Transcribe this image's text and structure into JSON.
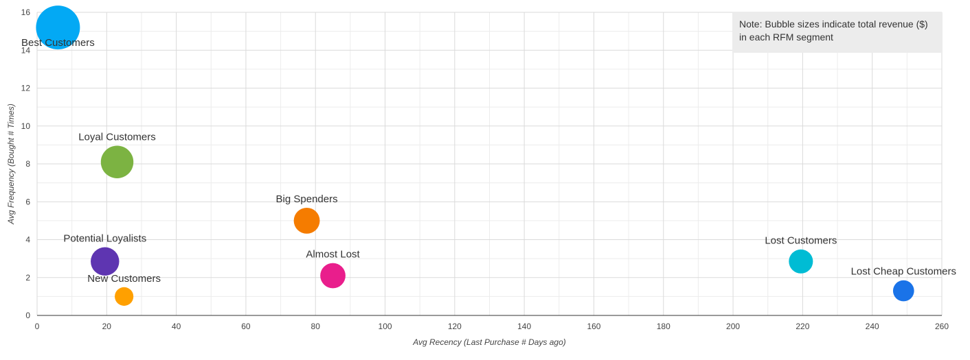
{
  "chart_data": {
    "type": "scatter",
    "title": "",
    "xlabel": "Avg Recency (Last Purchase # Days ago)",
    "ylabel": "Avg Frequency (Bought # Times)",
    "xlim": [
      0,
      260
    ],
    "ylim": [
      0,
      16
    ],
    "x_ticks": [
      0,
      20,
      40,
      60,
      80,
      100,
      120,
      140,
      160,
      180,
      200,
      220,
      240,
      260
    ],
    "y_ticks": [
      0,
      2,
      4,
      6,
      8,
      10,
      12,
      14,
      16
    ],
    "grid": true,
    "note": "Note: Bubble sizes indicate total revenue ($) in each RFM segment",
    "points": [
      {
        "label": "Best Customers",
        "x": 6,
        "y": 15.2,
        "size_rel": 1.0,
        "color": "#03a9f4"
      },
      {
        "label": "Loyal Customers",
        "x": 23,
        "y": 8.1,
        "size_rel": 0.55,
        "color": "#7cb342"
      },
      {
        "label": "Big Spenders",
        "x": 77.5,
        "y": 5.0,
        "size_rel": 0.35,
        "color": "#f57c00"
      },
      {
        "label": "Potential Loyalists",
        "x": 19.5,
        "y": 2.85,
        "size_rel": 0.42,
        "color": "#5e35b1"
      },
      {
        "label": "Almost Lost",
        "x": 85,
        "y": 2.1,
        "size_rel": 0.33,
        "color": "#e91e8c"
      },
      {
        "label": "New Customers",
        "x": 25,
        "y": 1.0,
        "size_rel": 0.18,
        "color": "#ffa000"
      },
      {
        "label": "Lost Customers",
        "x": 219.5,
        "y": 2.85,
        "size_rel": 0.3,
        "color": "#00bcd4"
      },
      {
        "label": "Lost Cheap Customers",
        "x": 249,
        "y": 1.3,
        "size_rel": 0.23,
        "color": "#1a73e8"
      }
    ]
  }
}
